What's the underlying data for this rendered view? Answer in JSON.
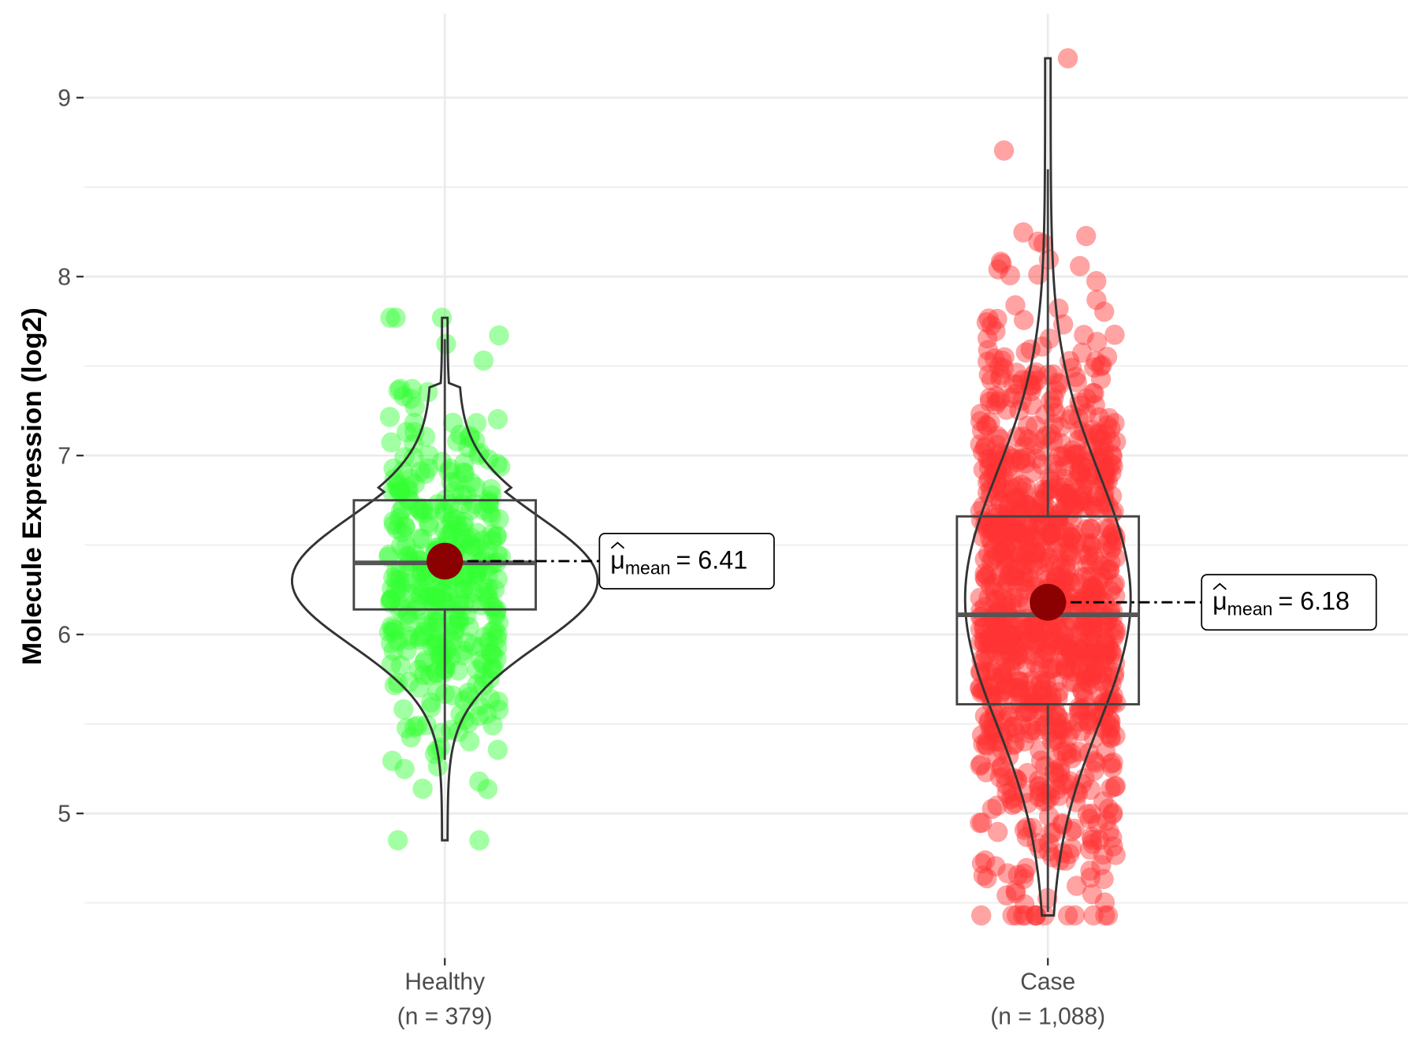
{
  "chart_data": {
    "type": "violin-box-jitter",
    "ylabel": "Molecule Expression (log2)",
    "xlabel": "",
    "ylim": [
      4.25,
      9.45
    ],
    "yticks": [
      5,
      6,
      7,
      8,
      9
    ],
    "grid": true,
    "groups": [
      {
        "name": "Healthy",
        "n_label": "(n = 379)",
        "n": 379,
        "color": "#33ff33",
        "mean": 6.41,
        "median": 6.4,
        "q1": 6.14,
        "q3": 6.75,
        "whisker_low": 5.3,
        "whisker_high": 7.65,
        "min": 4.85,
        "max": 7.77,
        "mean_label": {
          "symbol": "μ",
          "sub": "mean",
          "text": "= 6.41"
        }
      },
      {
        "name": "Case",
        "n_label": "(n = 1,088)",
        "n": 1088,
        "color": "#ff3333",
        "mean": 6.18,
        "median": 6.11,
        "q1": 5.61,
        "q3": 6.66,
        "whisker_low": 4.45,
        "whisker_high": 8.6,
        "min": 4.43,
        "max": 9.22,
        "mean_label": {
          "symbol": "μ",
          "sub": "mean",
          "text": "= 6.18"
        }
      }
    ]
  }
}
